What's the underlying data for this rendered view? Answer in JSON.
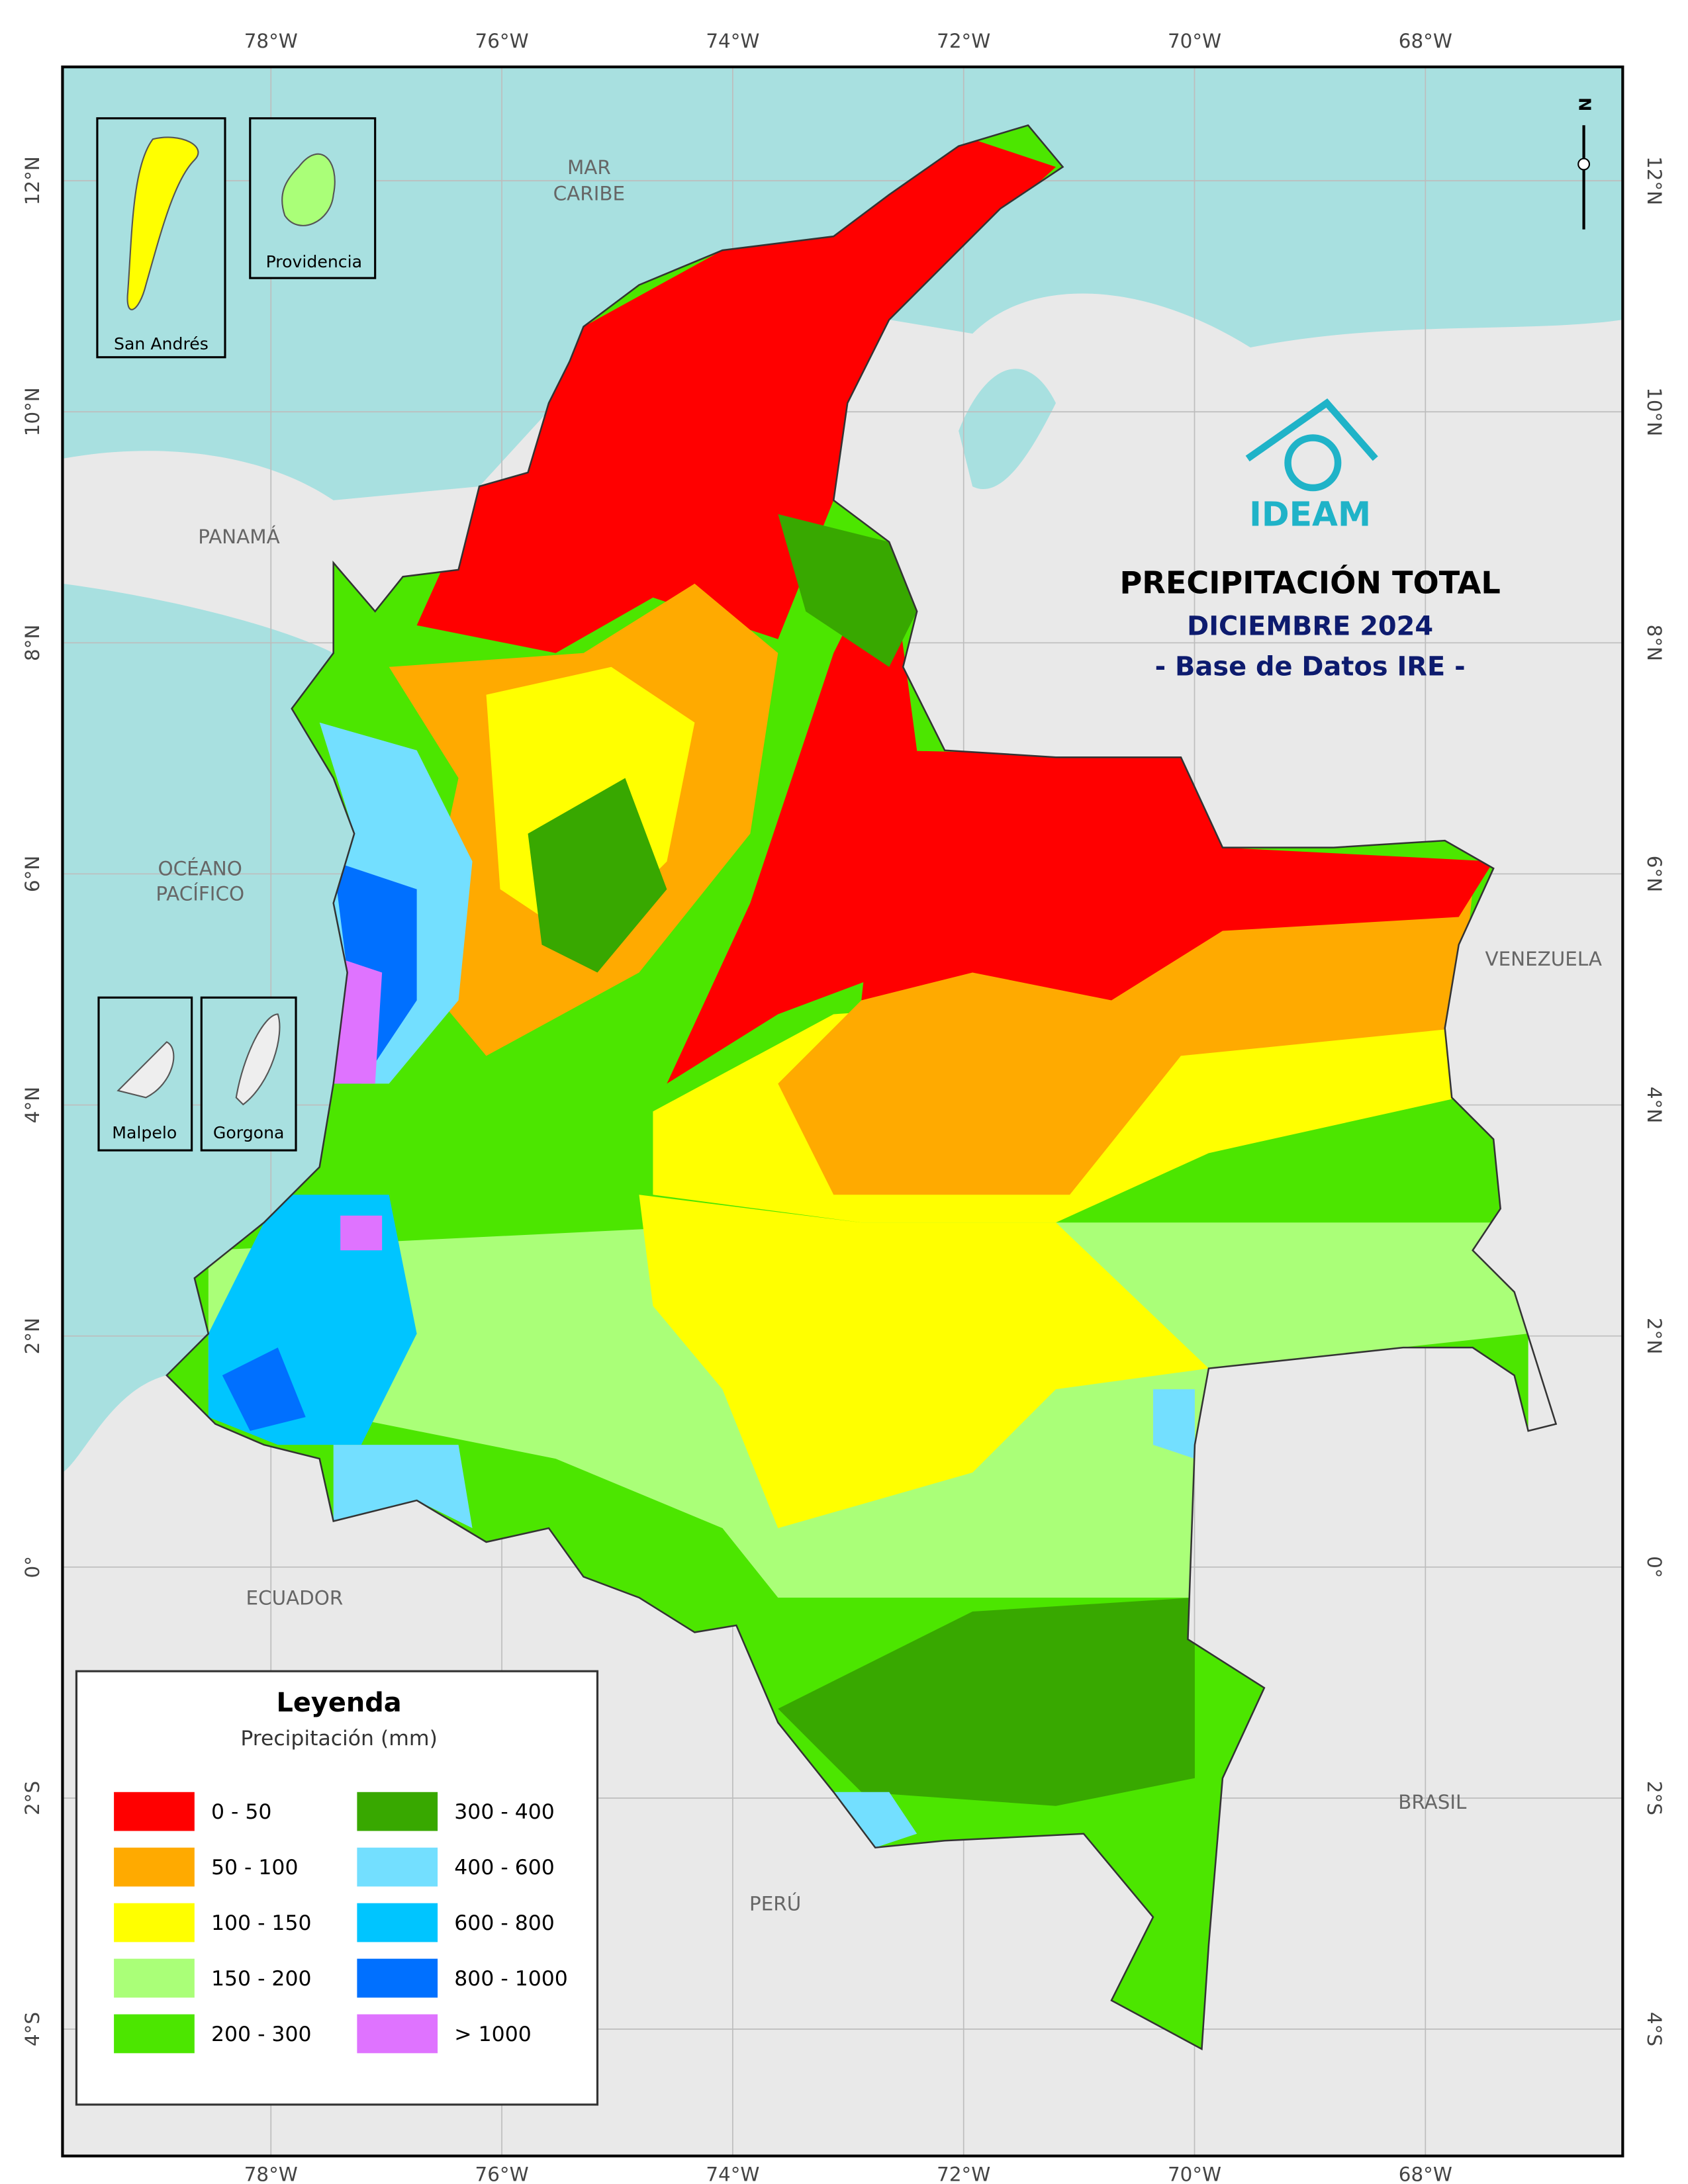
{
  "title": "PRECIPITACIÓN TOTAL",
  "subtitle": "DICIEMBRE 2024",
  "source": "- Base de Datos IRE -",
  "logo": "IDEAM",
  "north": "N",
  "places": {
    "sea": [
      "MAR",
      "CARIBE"
    ],
    "ocean": [
      "OCÉANO",
      "PACÍFICO"
    ],
    "panama": "PANAMÁ",
    "venezuela": "VENEZUELA",
    "ecuador": "ECUADOR",
    "brasil": "BRASIL",
    "peru": "PERÚ"
  },
  "insets": [
    "San Andrés",
    "Providencia",
    "Malpelo",
    "Gorgona"
  ],
  "xticks": [
    {
      "value": -78,
      "label": "78°W"
    },
    {
      "value": -76,
      "label": "76°W"
    },
    {
      "value": -74,
      "label": "74°W"
    },
    {
      "value": -72,
      "label": "72°W"
    },
    {
      "value": -70,
      "label": "70°W"
    },
    {
      "value": -68,
      "label": "68°W"
    }
  ],
  "yticks": [
    {
      "value": 12,
      "label": "12°N"
    },
    {
      "value": 10,
      "label": "10°N"
    },
    {
      "value": 8,
      "label": "8°N"
    },
    {
      "value": 6,
      "label": "6°N"
    },
    {
      "value": 4,
      "label": "4°N"
    },
    {
      "value": 2,
      "label": "2°N"
    },
    {
      "value": 0,
      "label": "0°"
    },
    {
      "value": -2,
      "label": "2°S"
    },
    {
      "value": -4,
      "label": "4°S"
    }
  ],
  "legend": {
    "title": "Leyenda",
    "subtitle": "Precipitación (mm)",
    "items": [
      {
        "name": "0 - 50",
        "color": "#ff0000"
      },
      {
        "name": "50 - 100",
        "color": "#ffaa00"
      },
      {
        "name": "100 - 150",
        "color": "#ffff00"
      },
      {
        "name": "150 - 200",
        "color": "#aaff78"
      },
      {
        "name": "200 - 300",
        "color": "#4ce600"
      },
      {
        "name": "300 - 400",
        "color": "#38a800"
      },
      {
        "name": "400 - 600",
        "color": "#73dfff"
      },
      {
        "name": "600 - 800",
        "color": "#00c5ff"
      },
      {
        "name": "800 - 1000",
        "color": "#0070ff"
      },
      {
        "name": "> 1000",
        "color": "#df73ff"
      }
    ]
  }
}
